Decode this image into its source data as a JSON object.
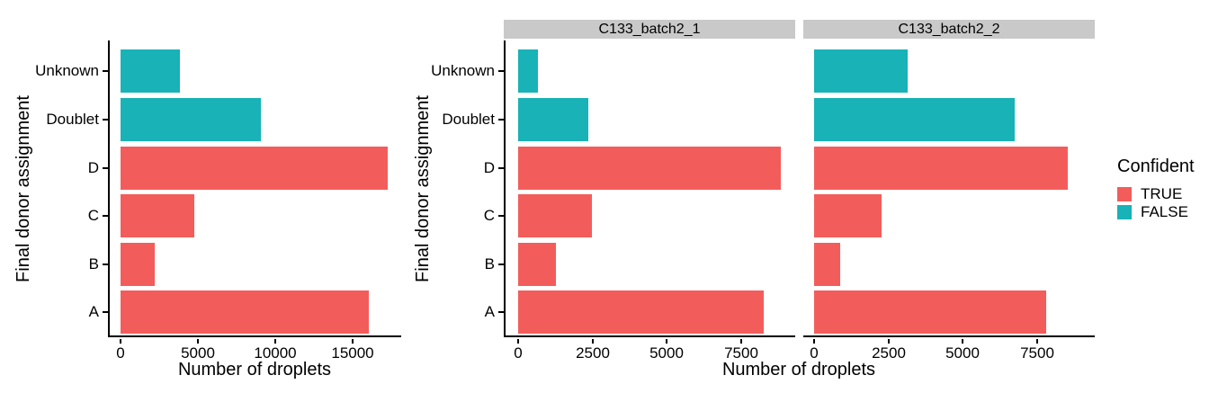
{
  "ui": {
    "legend": {
      "title": "Confident",
      "items": [
        {
          "label": "TRUE",
          "color": "#F25D5B"
        },
        {
          "label": "FALSE",
          "color": "#18B2B7"
        }
      ]
    },
    "strip_bg": "#C9C9C9",
    "axis_color": "#000000",
    "background": "#FFFFFF"
  },
  "chart_data": [
    {
      "type": "bar",
      "orientation": "horizontal",
      "panel": "single",
      "ylabel": "Final donor assignment",
      "xlabel": "Number of droplets",
      "categories": [
        "Unknown",
        "Doublet",
        "D",
        "C",
        "B",
        "A"
      ],
      "values": [
        3850,
        9050,
        17250,
        4750,
        2200,
        16000
      ],
      "confident": [
        "FALSE",
        "FALSE",
        "TRUE",
        "TRUE",
        "TRUE",
        "TRUE"
      ],
      "colors": {
        "TRUE": "#F25D5B",
        "FALSE": "#18B2B7"
      },
      "x_ticks": [
        0,
        5000,
        10000,
        15000
      ],
      "xlim": [
        0,
        18100
      ],
      "grid": false,
      "legend_position": "none"
    },
    {
      "type": "bar",
      "orientation": "horizontal",
      "panel": "facet_wrap",
      "ylabel": "Final donor assignment",
      "xlabel": "Number of droplets",
      "categories": [
        "Unknown",
        "Doublet",
        "D",
        "C",
        "B",
        "A"
      ],
      "confident": [
        "FALSE",
        "FALSE",
        "TRUE",
        "TRUE",
        "TRUE",
        "TRUE"
      ],
      "facets": [
        {
          "label": "C133_batch2_1",
          "values": [
            650,
            2370,
            8830,
            2470,
            1280,
            8240
          ]
        },
        {
          "label": "C133_batch2_2",
          "values": [
            3130,
            6730,
            8530,
            2260,
            880,
            7810
          ]
        }
      ],
      "colors": {
        "TRUE": "#F25D5B",
        "FALSE": "#18B2B7"
      },
      "x_ticks": [
        0,
        2500,
        5000,
        7500
      ],
      "xlim": [
        0,
        9340
      ],
      "grid": false,
      "legend_position": "right"
    }
  ]
}
